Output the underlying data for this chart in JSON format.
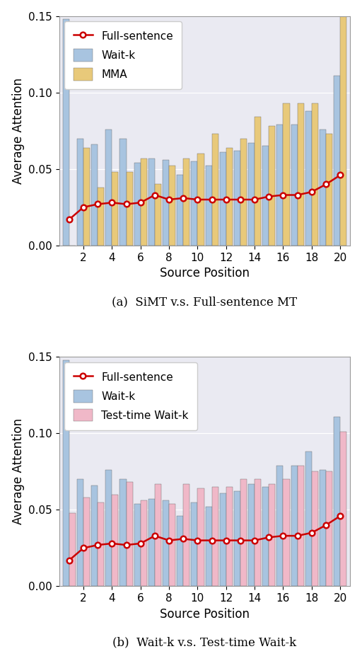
{
  "positions": [
    1,
    2,
    3,
    4,
    5,
    6,
    7,
    8,
    9,
    10,
    11,
    12,
    13,
    14,
    15,
    16,
    17,
    18,
    19,
    20
  ],
  "wait_k_a": [
    0.148,
    0.07,
    0.066,
    0.076,
    0.07,
    0.054,
    0.057,
    0.056,
    0.046,
    0.055,
    0.052,
    0.061,
    0.062,
    0.067,
    0.065,
    0.079,
    0.079,
    0.088,
    0.076,
    0.111
  ],
  "mma_a": [
    0.0,
    0.064,
    0.038,
    0.048,
    0.048,
    0.057,
    0.04,
    0.052,
    0.057,
    0.06,
    0.073,
    0.064,
    0.07,
    0.084,
    0.078,
    0.093,
    0.093,
    0.093,
    0.073,
    0.15
  ],
  "full_sentence_a": [
    0.017,
    0.025,
    0.027,
    0.028,
    0.027,
    0.028,
    0.033,
    0.03,
    0.031,
    0.03,
    0.03,
    0.03,
    0.03,
    0.03,
    0.032,
    0.033,
    0.033,
    0.035,
    0.04,
    0.046
  ],
  "wait_k_b": [
    0.148,
    0.07,
    0.066,
    0.076,
    0.07,
    0.054,
    0.057,
    0.056,
    0.046,
    0.055,
    0.052,
    0.061,
    0.062,
    0.067,
    0.065,
    0.079,
    0.079,
    0.088,
    0.076,
    0.111
  ],
  "testwaitk_b": [
    0.048,
    0.058,
    0.055,
    0.06,
    0.068,
    0.056,
    0.067,
    0.054,
    0.067,
    0.064,
    0.065,
    0.065,
    0.07,
    0.07,
    0.067,
    0.07,
    0.079,
    0.075,
    0.075,
    0.101
  ],
  "full_sentence_b": [
    0.017,
    0.025,
    0.027,
    0.028,
    0.027,
    0.028,
    0.033,
    0.03,
    0.031,
    0.03,
    0.03,
    0.03,
    0.03,
    0.03,
    0.032,
    0.033,
    0.033,
    0.035,
    0.04,
    0.046
  ],
  "wait_k_color": "#a8c4e0",
  "mma_color": "#e8c97a",
  "testwaitk_color": "#f0b8c8",
  "full_sentence_color": "#cc0000",
  "ylim": [
    0.0,
    0.15
  ],
  "yticks": [
    0.0,
    0.05,
    0.1,
    0.15
  ],
  "xlabel": "Source Position",
  "ylabel": "Average Attention",
  "caption_a": "(a)  SiMT v.s. Full-sentence MT",
  "caption_b": "(b)  Wait-k v.s. Test-time Wait-k",
  "legend_a": [
    "Full-sentence",
    "Wait-k",
    "MMA"
  ],
  "legend_b": [
    "Full-sentence",
    "Wait-k",
    "Test-time Wait-k"
  ],
  "bar_width": 0.45,
  "bg_color": "#eaeaf2",
  "grid_color": "#ffffff"
}
